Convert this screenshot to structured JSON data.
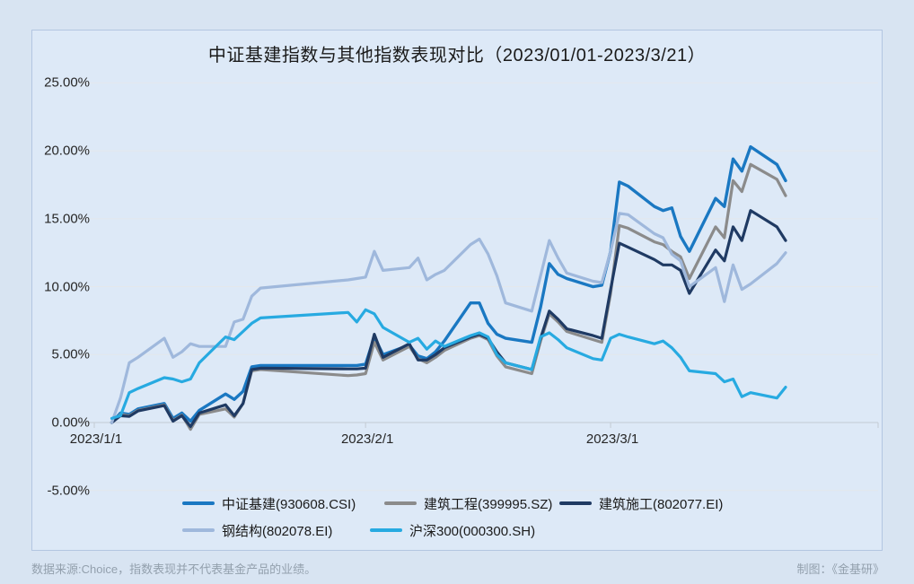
{
  "chart": {
    "border_color": "#b3c6e1",
    "background": "#dde9f7"
  },
  "y_axis": {
    "ticks": [
      {
        "value": 25,
        "label": "25.00%"
      },
      {
        "value": 20,
        "label": "20.00%"
      },
      {
        "value": 15,
        "label": "15.00%"
      },
      {
        "value": 10,
        "label": "10.00%"
      },
      {
        "value": 5,
        "label": "5.00%"
      },
      {
        "value": 0,
        "label": "0.00%"
      },
      {
        "value": -5,
        "label": "-5.00%"
      }
    ]
  },
  "x_axis": {
    "ticks": [
      {
        "date": "2023-01-01",
        "label": "2023/1/1"
      },
      {
        "date": "2023-02-01",
        "label": "2023/2/1"
      },
      {
        "date": "2023-03-01",
        "label": "2023/3/1"
      }
    ]
  },
  "legend": {
    "items": [
      {
        "label": "中证基建(930608.CSI)",
        "color": "#1a78c2"
      },
      {
        "label": "建筑工程(399995.SZ)",
        "color": "#8b8b8b"
      },
      {
        "label": "建筑施工(802077.EI)",
        "color": "#1f3a63"
      },
      {
        "label": "钢结构(802078.EI)",
        "color": "#9fb8dc"
      },
      {
        "label": "沪深300(000300.SH)",
        "color": "#27aae1"
      }
    ]
  },
  "footer": {
    "source": "数据来源:Choice，指数表现并不代表基金产品的业绩。",
    "credit": "制图：《金基研》"
  },
  "chart_data": {
    "type": "line",
    "title": "中证基建指数与其他指数表现对比（2023/01/01-2023/3/21）",
    "xlabel": "",
    "ylabel": "",
    "ylim": [
      -5,
      25
    ],
    "grid": true,
    "legend_position": "bottom",
    "x": [
      "2023-01-03",
      "2023-01-04",
      "2023-01-05",
      "2023-01-06",
      "2023-01-09",
      "2023-01-10",
      "2023-01-11",
      "2023-01-12",
      "2023-01-13",
      "2023-01-16",
      "2023-01-17",
      "2023-01-18",
      "2023-01-19",
      "2023-01-20",
      "2023-01-30",
      "2023-01-31",
      "2023-02-01",
      "2023-02-02",
      "2023-02-03",
      "2023-02-06",
      "2023-02-07",
      "2023-02-08",
      "2023-02-09",
      "2023-02-10",
      "2023-02-13",
      "2023-02-14",
      "2023-02-15",
      "2023-02-16",
      "2023-02-17",
      "2023-02-20",
      "2023-02-21",
      "2023-02-22",
      "2023-02-23",
      "2023-02-24",
      "2023-02-27",
      "2023-02-28",
      "2023-03-01",
      "2023-03-02",
      "2023-03-03",
      "2023-03-06",
      "2023-03-07",
      "2023-03-08",
      "2023-03-09",
      "2023-03-10",
      "2023-03-13",
      "2023-03-14",
      "2023-03-15",
      "2023-03-16",
      "2023-03-17",
      "2023-03-20",
      "2023-03-21"
    ],
    "unit": "percent",
    "series": [
      {
        "name": "中证基建(930608.CSI)",
        "color": "#1a78c2",
        "width": 3.4,
        "values": [
          0.0,
          0.7,
          0.6,
          1.0,
          1.4,
          0.3,
          0.7,
          0.1,
          0.9,
          2.1,
          1.7,
          2.3,
          4.1,
          4.2,
          4.2,
          4.2,
          4.3,
          6.3,
          5.0,
          5.7,
          4.9,
          4.7,
          5.2,
          6.0,
          8.8,
          8.8,
          7.3,
          6.5,
          6.2,
          5.9,
          8.5,
          11.7,
          10.9,
          10.6,
          10.0,
          10.1,
          12.6,
          17.7,
          17.4,
          15.9,
          15.6,
          15.8,
          13.7,
          12.6,
          16.5,
          15.9,
          19.4,
          18.5,
          20.3,
          19.0,
          17.8
        ]
      },
      {
        "name": "建筑工程(399995.SZ)",
        "color": "#8b8b8b",
        "width": 3.2,
        "values": [
          0.0,
          0.6,
          0.5,
          0.9,
          1.3,
          0.15,
          0.55,
          -0.5,
          0.6,
          1.0,
          0.4,
          1.4,
          3.8,
          3.9,
          3.45,
          3.5,
          3.6,
          5.9,
          4.6,
          5.6,
          4.7,
          4.4,
          4.8,
          5.3,
          6.2,
          6.4,
          6.1,
          4.9,
          4.1,
          3.6,
          6.0,
          8.0,
          7.4,
          6.7,
          6.1,
          5.9,
          9.5,
          14.5,
          14.3,
          13.3,
          13.1,
          12.6,
          12.2,
          10.6,
          14.4,
          13.6,
          17.8,
          17.0,
          19.0,
          17.9,
          16.7
        ]
      },
      {
        "name": "建筑施工(802077.EI)",
        "color": "#1f3a63",
        "width": 3.2,
        "values": [
          0.0,
          0.5,
          0.45,
          0.85,
          1.25,
          0.1,
          0.5,
          -0.3,
          0.7,
          1.3,
          0.5,
          1.4,
          3.9,
          4.0,
          3.95,
          3.95,
          4.0,
          6.5,
          4.8,
          5.8,
          4.6,
          4.6,
          5.0,
          5.5,
          6.3,
          6.5,
          6.2,
          5.2,
          4.4,
          3.9,
          6.2,
          8.2,
          7.6,
          6.9,
          6.4,
          6.2,
          9.8,
          13.2,
          12.9,
          12.0,
          11.6,
          11.6,
          11.2,
          9.5,
          12.7,
          11.9,
          14.4,
          13.4,
          15.6,
          14.4,
          13.4
        ]
      },
      {
        "name": "钢结构(802078.EI)",
        "color": "#9fb8dc",
        "width": 3.2,
        "values": [
          0.0,
          1.8,
          4.4,
          4.8,
          6.2,
          4.8,
          5.2,
          5.8,
          5.6,
          5.6,
          7.4,
          7.6,
          9.3,
          9.9,
          10.5,
          10.6,
          10.7,
          12.6,
          11.2,
          11.4,
          12.1,
          10.5,
          10.9,
          11.2,
          13.1,
          13.5,
          12.4,
          10.8,
          8.8,
          8.2,
          10.8,
          13.4,
          12.1,
          11.0,
          10.4,
          10.3,
          12.6,
          15.4,
          15.3,
          13.9,
          13.6,
          12.4,
          11.9,
          10.0,
          11.4,
          8.9,
          11.6,
          9.8,
          10.2,
          11.7,
          12.5
        ]
      },
      {
        "name": "沪深300(000300.SH)",
        "color": "#27aae1",
        "width": 3.2,
        "values": [
          0.3,
          0.5,
          2.2,
          2.5,
          3.3,
          3.2,
          3.0,
          3.2,
          4.4,
          6.3,
          6.1,
          6.7,
          7.3,
          7.7,
          8.1,
          7.4,
          8.3,
          8.0,
          7.0,
          5.9,
          6.2,
          5.4,
          6.0,
          5.6,
          6.4,
          6.6,
          6.3,
          5.0,
          4.4,
          3.9,
          6.3,
          6.6,
          6.1,
          5.5,
          4.7,
          4.6,
          6.2,
          6.5,
          6.3,
          5.8,
          6.0,
          5.5,
          4.8,
          3.8,
          3.6,
          3.0,
          3.2,
          1.9,
          2.2,
          1.8,
          2.6
        ]
      }
    ],
    "style": {
      "gridline_color": "#e4e8ec",
      "axis_color": "#c3cbd3"
    }
  }
}
